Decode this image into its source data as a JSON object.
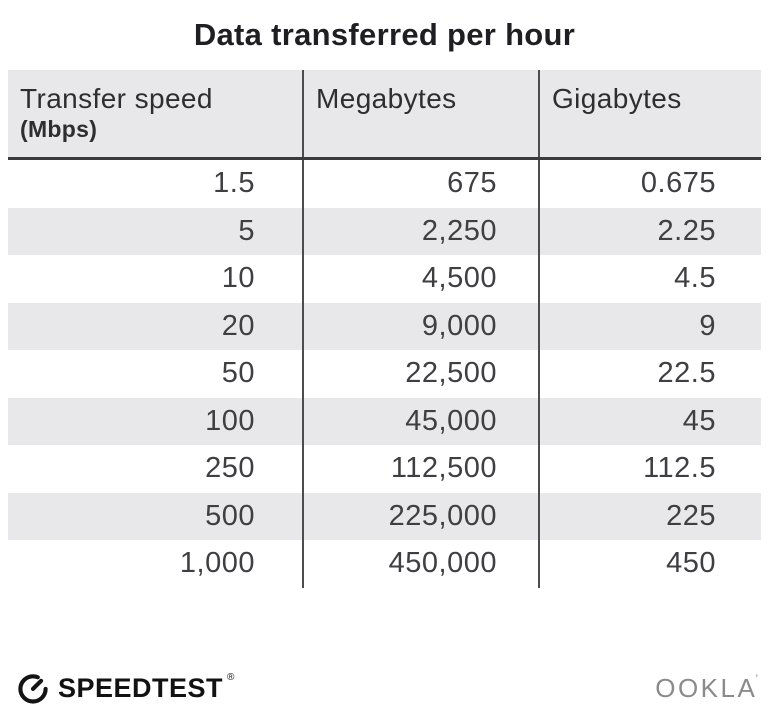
{
  "title": "Data transferred per hour",
  "table": {
    "columns": [
      {
        "label": "Transfer speed",
        "sublabel": "(Mbps)"
      },
      {
        "label": "Megabytes",
        "sublabel": ""
      },
      {
        "label": "Gigabytes",
        "sublabel": ""
      }
    ],
    "rows": [
      [
        "1.5",
        "675",
        "0.675"
      ],
      [
        "5",
        "2,250",
        "2.25"
      ],
      [
        "10",
        "4,500",
        "4.5"
      ],
      [
        "20",
        "9,000",
        "9"
      ],
      [
        "50",
        "22,500",
        "22.5"
      ],
      [
        "100",
        "45,000",
        "45"
      ],
      [
        "250",
        "112,500",
        "112.5"
      ],
      [
        "500",
        "225,000",
        "225"
      ],
      [
        "1,000",
        "450,000",
        "450"
      ]
    ]
  },
  "footer": {
    "speedtest_label": "SPEEDTEST",
    "speedtest_reg_mark": "®",
    "ookla_label": "OOKLA",
    "ookla_mark": "’"
  },
  "colors": {
    "stripe_gray": "#e8e8ea",
    "header_rule": "#3b3b3b",
    "column_divider": "#4c4c4c",
    "title_text": "#1f1f23",
    "body_text": "#3f3f43",
    "speedtest_black": "#121212",
    "ookla_gray": "#8b8b8b"
  },
  "chart_data": {
    "type": "table",
    "title": "Data transferred per hour",
    "columns": [
      "Transfer speed (Mbps)",
      "Megabytes",
      "Gigabytes"
    ],
    "rows": [
      [
        1.5,
        675,
        0.675
      ],
      [
        5,
        2250,
        2.25
      ],
      [
        10,
        4500,
        4.5
      ],
      [
        20,
        9000,
        9
      ],
      [
        50,
        22500,
        22.5
      ],
      [
        100,
        45000,
        45
      ],
      [
        250,
        112500,
        112.5
      ],
      [
        500,
        225000,
        225
      ],
      [
        1000,
        450000,
        450
      ]
    ]
  }
}
